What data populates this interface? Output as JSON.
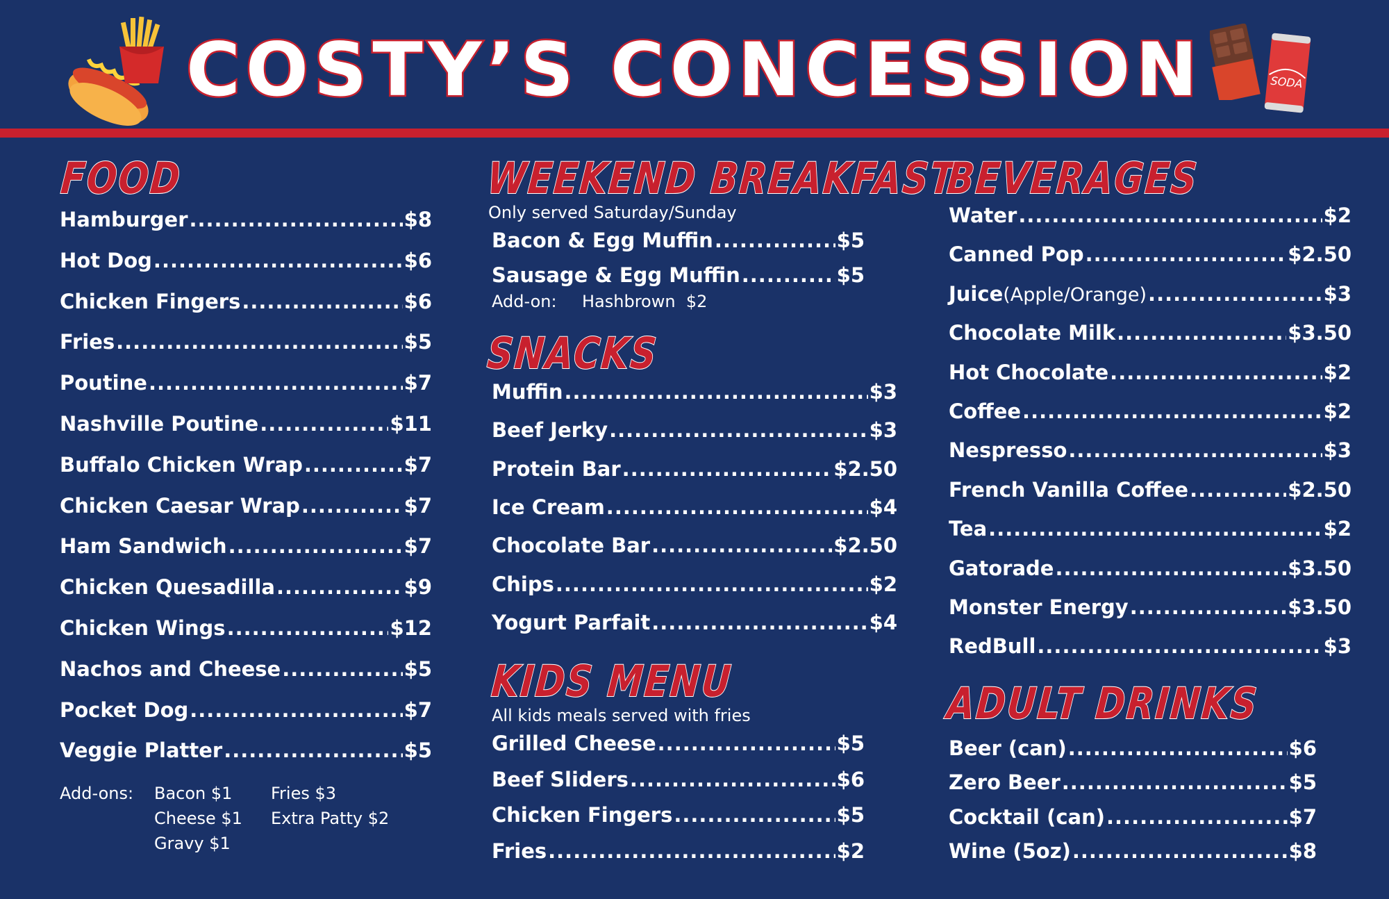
{
  "title": "COSTY’S CONCESSION",
  "colors": {
    "background": "#1a3268",
    "accent": "#c8202e",
    "text": "#ffffff"
  },
  "icons": [
    "hotdog-icon",
    "fries-icon",
    "chocolate-bar-icon",
    "soda-can-icon"
  ],
  "soda_label": "SODA",
  "food": {
    "heading": "FOOD",
    "items": [
      {
        "name": "Hamburger",
        "price": "$8"
      },
      {
        "name": "Hot Dog",
        "price": "$6"
      },
      {
        "name": "Chicken Fingers",
        "price": "$6"
      },
      {
        "name": "Fries",
        "price": "$5"
      },
      {
        "name": "Poutine",
        "price": "$7"
      },
      {
        "name": "Nashville Poutine",
        "price": "$11"
      },
      {
        "name": "Buffalo Chicken Wrap",
        "price": "$7"
      },
      {
        "name": "Chicken Caesar Wrap",
        "price": "$7"
      },
      {
        "name": "Ham Sandwich",
        "price": "$7"
      },
      {
        "name": "Chicken Quesadilla",
        "price": "$9"
      },
      {
        "name": "Chicken Wings",
        "price": "$12"
      },
      {
        "name": "Nachos and Cheese",
        "price": "$5"
      },
      {
        "name": "Pocket Dog",
        "price": "$7"
      },
      {
        "name": "Veggie Platter",
        "price": "$5"
      }
    ],
    "addons_label": "Add-ons:",
    "addons_col1": [
      "Bacon $1",
      "Cheese $1",
      "Gravy $1"
    ],
    "addons_col2": [
      "Fries $3",
      "Extra Patty $2"
    ]
  },
  "breakfast": {
    "heading": "WEEKEND BREAKFAST",
    "note": "Only served Saturday/Sunday",
    "items": [
      {
        "name": "Bacon & Egg Muffin",
        "price": "$5"
      },
      {
        "name": "Sausage & Egg Muffin",
        "price": "$5"
      }
    ],
    "addon_label": "Add-on:",
    "addon_value": "Hashbrown  $2"
  },
  "snacks": {
    "heading": "SNACKS",
    "items": [
      {
        "name": "Muffin",
        "price": "$3"
      },
      {
        "name": "Beef Jerky",
        "price": "$3"
      },
      {
        "name": "Protein Bar",
        "price": "$2.50"
      },
      {
        "name": "Ice Cream",
        "price": "$4"
      },
      {
        "name": "Chocolate Bar",
        "price": "$2.50"
      },
      {
        "name": "Chips",
        "price": "$2"
      },
      {
        "name": "Yogurt Parfait",
        "price": "$4"
      }
    ]
  },
  "kids": {
    "heading": "KIDS MENU",
    "note": "All kids meals served with fries",
    "items": [
      {
        "name": "Grilled Cheese",
        "price": "$5"
      },
      {
        "name": "Beef Sliders",
        "price": "$6"
      },
      {
        "name": "Chicken Fingers",
        "price": "$5"
      },
      {
        "name": "Fries",
        "price": "$2"
      }
    ]
  },
  "beverages": {
    "heading": "BEVERAGES",
    "items": [
      {
        "name": "Water",
        "extra": "",
        "price": "$2"
      },
      {
        "name": "Canned Pop",
        "extra": "",
        "price": "$2.50"
      },
      {
        "name": "Juice",
        "extra": "(Apple/Orange)",
        "price": "$3"
      },
      {
        "name": "Chocolate Milk",
        "extra": "",
        "price": "$3.50"
      },
      {
        "name": "Hot Chocolate",
        "extra": "",
        "price": "$2"
      },
      {
        "name": "Coffee",
        "extra": "",
        "price": "$2"
      },
      {
        "name": "Nespresso",
        "extra": "",
        "price": "$3"
      },
      {
        "name": "French Vanilla Coffee",
        "extra": "",
        "price": "$2.50"
      },
      {
        "name": "Tea",
        "extra": "",
        "price": "$2"
      },
      {
        "name": "Gatorade",
        "extra": "",
        "price": "$3.50"
      },
      {
        "name": "Monster Energy",
        "extra": "",
        "price": "$3.50"
      },
      {
        "name": "RedBull",
        "extra": "",
        "price": "$3"
      }
    ]
  },
  "adult": {
    "heading": "ADULT DRINKS",
    "items": [
      {
        "name": "Beer (can)",
        "price": "$6"
      },
      {
        "name": "Zero Beer",
        "price": "$5"
      },
      {
        "name": "Cocktail (can)",
        "price": "$7"
      },
      {
        "name": "Wine (5oz)",
        "price": "$8"
      }
    ]
  }
}
